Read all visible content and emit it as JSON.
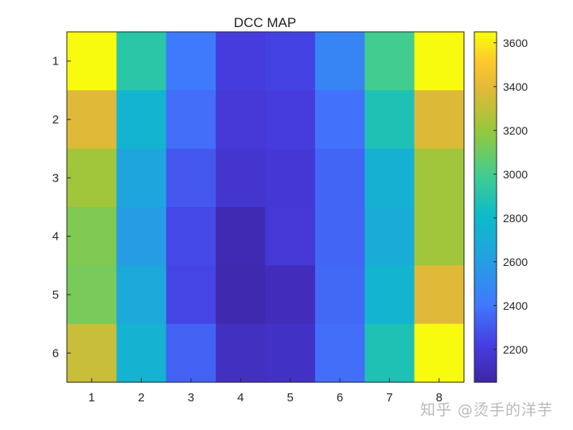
{
  "chart_data": {
    "type": "heatmap",
    "title": "DCC MAP",
    "x_ticks": [
      "1",
      "2",
      "3",
      "4",
      "5",
      "6",
      "7",
      "8"
    ],
    "y_ticks": [
      "1",
      "2",
      "3",
      "4",
      "5",
      "6"
    ],
    "values": [
      [
        3650,
        2920,
        2420,
        2200,
        2230,
        2470,
        3000,
        3650
      ],
      [
        3390,
        2760,
        2370,
        2180,
        2200,
        2380,
        2880,
        3380
      ],
      [
        3230,
        2650,
        2300,
        2160,
        2170,
        2340,
        2730,
        3230
      ],
      [
        3150,
        2590,
        2250,
        2080,
        2180,
        2340,
        2700,
        3230
      ],
      [
        3130,
        2680,
        2240,
        2070,
        2100,
        2350,
        2760,
        3390
      ],
      [
        3330,
        2740,
        2330,
        2120,
        2130,
        2370,
        2880,
        3650
      ]
    ],
    "colorbar": {
      "min": 2050,
      "max": 3650,
      "ticks": [
        2200,
        2400,
        2600,
        2800,
        3000,
        3200,
        3400,
        3600
      ]
    },
    "xlabel": "",
    "ylabel": ""
  },
  "watermark": "知乎 @烫手的洋芋"
}
